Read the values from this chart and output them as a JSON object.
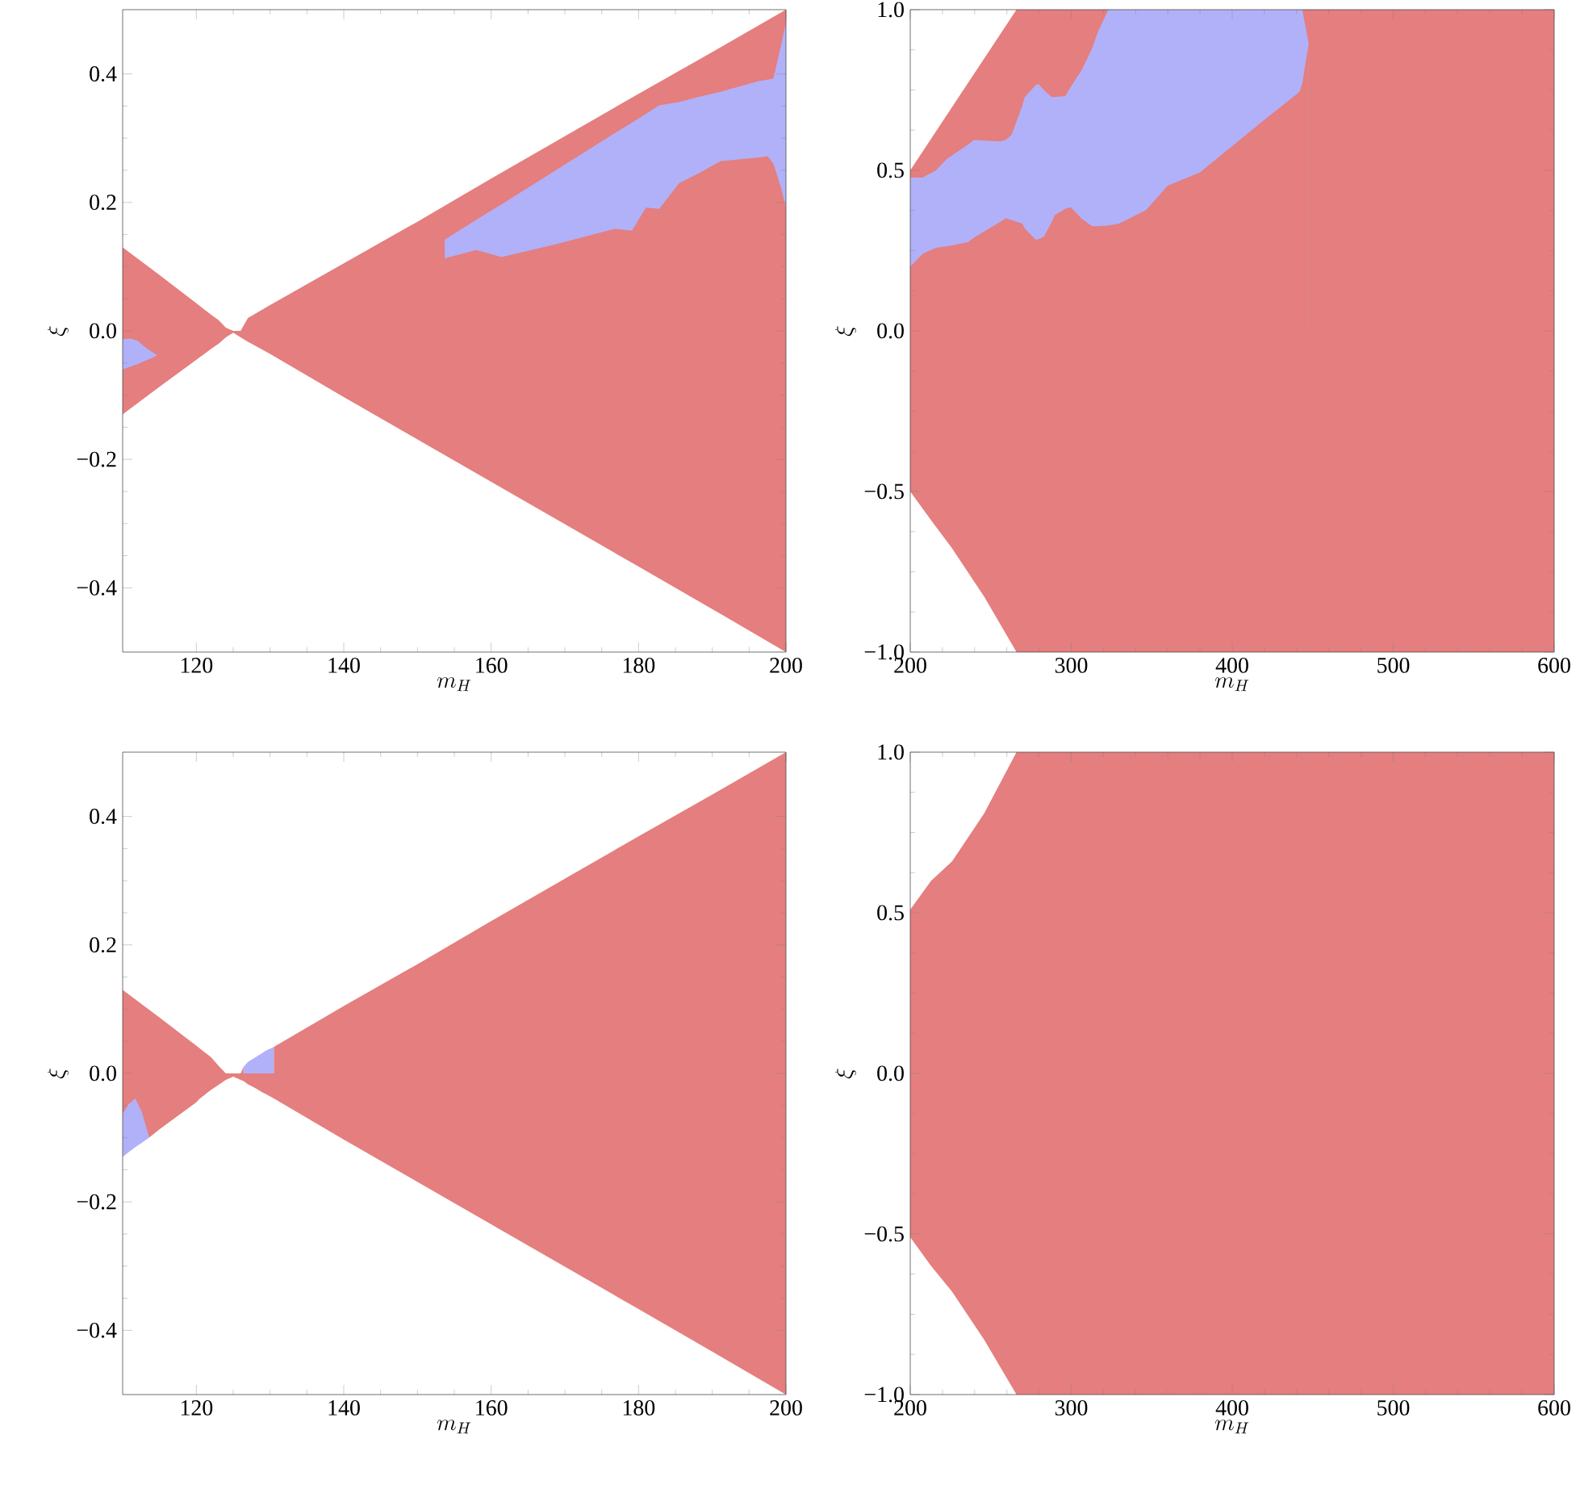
{
  "chart_data": [
    {
      "type": "area",
      "xlabel": "m_H",
      "ylabel": "\\xi",
      "xlim": [
        110,
        200
      ],
      "ylim": [
        -0.5,
        0.5
      ],
      "xticks": [
        120,
        140,
        160,
        180,
        200
      ],
      "yticks": [
        {
          "value": -0.4,
          "label": "−0.4"
        },
        {
          "value": -0.2,
          "label": "−0.2"
        },
        {
          "value": 0,
          "label": "0.0"
        },
        {
          "value": 0.2,
          "label": "0.2"
        },
        {
          "value": 0.4,
          "label": "0.4"
        }
      ],
      "series": [
        {
          "color": "#e57e7e",
          "x": [
            110,
            115,
            120,
            122,
            123,
            124,
            125,
            126,
            127,
            130,
            140,
            150,
            160,
            170,
            180,
            190,
            200
          ],
          "values": [
            0.13,
            0.087,
            0.043,
            0.025,
            0.017,
            0.005,
            0,
            0,
            0.02,
            0.04,
            0.105,
            0.17,
            0.237,
            0.303,
            0.369,
            0.434,
            0.5
          ]
        },
        {
          "color": "#b1b1f9",
          "x": [
            153.7,
            158,
            161.4,
            168.5,
            176.8,
            179.1,
            181,
            182.8,
            185.5,
            188.1,
            191.1,
            196.4,
            197.5,
            198.3,
            199.4,
            200
          ],
          "values": [
            0.142,
            0.173,
            0.197,
            0.248,
            0.308,
            0.324,
            0.338,
            0.351,
            0.356,
            0.364,
            0.372,
            0.389,
            0.391,
            0.393,
            0.448,
            0.48
          ]
        },
        {
          "color": "#e57e7e",
          "x": [
            153.7,
            158,
            161.4,
            168.5,
            176.8,
            179.1,
            181,
            182.8,
            185.5,
            188.1,
            191.1,
            196.4,
            197.5,
            198.3,
            199.4,
            200
          ],
          "values": [
            0.113,
            0.126,
            0.115,
            0.134,
            0.159,
            0.156,
            0.192,
            0.19,
            0.23,
            0.245,
            0.264,
            0.27,
            0.272,
            0.26,
            0.22,
            0.192
          ]
        },
        {
          "color": "#e57e7e",
          "x": [
            110,
            115,
            120,
            122,
            123,
            124,
            125,
            126,
            127,
            130,
            140,
            150,
            160,
            170,
            180,
            190,
            200
          ],
          "values": [
            -0.13,
            -0.087,
            -0.045,
            -0.028,
            -0.02,
            -0.01,
            -0.003,
            -0.01,
            -0.017,
            -0.036,
            -0.103,
            -0.169,
            -0.235,
            -0.301,
            -0.367,
            -0.433,
            -0.5
          ]
        },
        {
          "color": "#b1b1f9",
          "x": [
            110,
            111,
            112,
            113,
            114,
            114.7
          ],
          "values": [
            -0.06,
            -0.056,
            -0.052,
            -0.047,
            -0.042,
            -0.038
          ]
        },
        {
          "color": "#e57e7e",
          "x": [
            110,
            111,
            112,
            113,
            114,
            114.7
          ],
          "values": [
            -0.013,
            -0.012,
            -0.015,
            -0.025,
            -0.033,
            -0.038
          ]
        }
      ]
    },
    {
      "type": "area",
      "xlabel": "m_H",
      "ylabel": "\\xi",
      "xlim": [
        200,
        600
      ],
      "ylim": [
        -1,
        1
      ],
      "xticks": [
        200,
        300,
        400,
        500,
        600
      ],
      "yticks": [
        {
          "value": -1,
          "label": "−1.0"
        },
        {
          "value": -0.5,
          "label": "−0.5"
        },
        {
          "value": 0,
          "label": "0.0"
        },
        {
          "value": 0.5,
          "label": "0.5"
        },
        {
          "value": 1,
          "label": "1.0"
        }
      ],
      "series": [
        {
          "color": "#e57e7e",
          "x": [
            200,
            213,
            226,
            246,
            266,
            600
          ],
          "values": [
            -0.5,
            -0.59,
            -0.677,
            -0.828,
            -1,
            -1
          ]
        },
        {
          "color": "#e57e7e",
          "x": [
            200,
            266,
            600
          ],
          "values": [
            0.5,
            1,
            1
          ]
        },
        {
          "color": "#b1b1f9",
          "x": [
            200,
            207.7,
            216,
            222.7,
            236,
            239.5,
            256,
            259.5,
            262.9,
            269.6,
            271,
            277.9,
            279.6,
            283,
            288,
            289.6,
            296.3,
            299.7,
            306.4,
            313,
            316.4,
            323,
            329.8,
            346.5,
            359.9,
            379.9,
            416.7,
            441.8,
            443.5,
            447.5
          ],
          "values": [
            0.477,
            0.477,
            0.5,
            0.535,
            0.58,
            0.594,
            0.59,
            0.595,
            0.61,
            0.7,
            0.727,
            0.765,
            0.769,
            0.75,
            0.727,
            0.728,
            0.731,
            0.76,
            0.811,
            0.88,
            0.928,
            1,
            1,
            1,
            1,
            1,
            1,
            1,
            1,
            0.895
          ]
        },
        {
          "color": "#e57e7e",
          "x": [
            200,
            207.7,
            216,
            222.7,
            236,
            239.5,
            256,
            259.5,
            262.9,
            269.6,
            271,
            277.9,
            279.6,
            283,
            288,
            289.6,
            296.3,
            299.7,
            306.4,
            313,
            316.4,
            323,
            329.8,
            346.5,
            359.9,
            379.9,
            416.7,
            441.8,
            443.5,
            447.5
          ],
          "values": [
            0.2,
            0.24,
            0.259,
            0.263,
            0.276,
            0.29,
            0.34,
            0.351,
            0.345,
            0.334,
            0.32,
            0.284,
            0.285,
            0.293,
            0.34,
            0.36,
            0.38,
            0.385,
            0.35,
            0.326,
            0.326,
            0.328,
            0.334,
            0.376,
            0.452,
            0.493,
            0.644,
            0.744,
            0.77,
            0.895
          ]
        }
      ]
    },
    {
      "type": "area",
      "xlabel": "m_H",
      "ylabel": "\\xi",
      "xlim": [
        110,
        200
      ],
      "ylim": [
        -0.5,
        0.5
      ],
      "xticks": [
        120,
        140,
        160,
        180,
        200
      ],
      "yticks": [
        {
          "value": -0.4,
          "label": "−0.4"
        },
        {
          "value": -0.2,
          "label": "−0.2"
        },
        {
          "value": 0,
          "label": "0.0"
        },
        {
          "value": 0.2,
          "label": "0.2"
        },
        {
          "value": 0.4,
          "label": "0.4"
        }
      ],
      "series": [
        {
          "color": "#e57e7e",
          "x": [
            110,
            115,
            120,
            122,
            123,
            124,
            125,
            126,
            126.4,
            127,
            128,
            129,
            129.4,
            130.5,
            140,
            150,
            160,
            170,
            180,
            190,
            200
          ],
          "values": [
            0.13,
            0.087,
            0.043,
            0.025,
            0.012,
            0,
            0,
            0,
            0.01,
            null,
            null,
            null,
            null,
            0.041,
            0.105,
            0.17,
            0.237,
            0.303,
            0.369,
            0.434,
            0.5
          ]
        },
        {
          "color": "#b1b1f9",
          "x": [
            126.4,
            127,
            128,
            129,
            129.4,
            130.5
          ],
          "values": [
            0.01,
            0.018,
            0.025,
            0.032,
            0.035,
            0.041
          ]
        },
        {
          "color": "#e57e7e",
          "x": [
            113.6,
            115,
            120,
            120.4,
            121.5,
            122.1,
            123,
            124,
            125,
            126,
            126.4,
            127,
            128,
            129,
            129.4,
            130.5,
            140,
            150,
            160,
            170,
            180,
            190,
            200
          ],
          "values": [
            -0.1,
            -0.087,
            -0.045,
            -0.04,
            -0.03,
            -0.025,
            -0.018,
            -0.01,
            -0.005,
            -0.01,
            -0.012,
            -0.017,
            -0.023,
            -0.03,
            -0.032,
            -0.039,
            -0.103,
            -0.169,
            -0.235,
            -0.301,
            -0.367,
            -0.433,
            -0.5
          ]
        },
        {
          "color": "#b1b1f9",
          "x": [
            110,
            110.8,
            111.7,
            112.6,
            113.6
          ],
          "values": [
            -0.13,
            -0.123,
            -0.115,
            -0.108,
            -0.1
          ]
        },
        {
          "color": "#e57e7e",
          "x": [
            110,
            110.8,
            111.7,
            112.6,
            113.6
          ],
          "values": [
            -0.063,
            -0.048,
            -0.039,
            -0.06,
            -0.1
          ]
        }
      ]
    },
    {
      "type": "area",
      "xlabel": "m_H",
      "ylabel": "\\xi",
      "xlim": [
        200,
        600
      ],
      "ylim": [
        -1,
        1
      ],
      "xticks": [
        200,
        300,
        400,
        500,
        600
      ],
      "yticks": [
        {
          "value": -1,
          "label": "−1.0"
        },
        {
          "value": -0.5,
          "label": "−0.5"
        },
        {
          "value": 0,
          "label": "0.0"
        },
        {
          "value": 0.5,
          "label": "0.5"
        },
        {
          "value": 1,
          "label": "1.0"
        }
      ],
      "series": [
        {
          "color": "#e57e7e",
          "x": [
            200,
            213,
            226,
            246,
            266,
            600
          ],
          "values": [
            0.51,
            0.6,
            0.66,
            0.81,
            1,
            1
          ]
        },
        {
          "color": "#e57e7e",
          "x": [
            200,
            213,
            226,
            246,
            266,
            600
          ],
          "values": [
            -0.51,
            -0.6,
            -0.68,
            -0.83,
            -1,
            -1
          ]
        }
      ]
    }
  ]
}
